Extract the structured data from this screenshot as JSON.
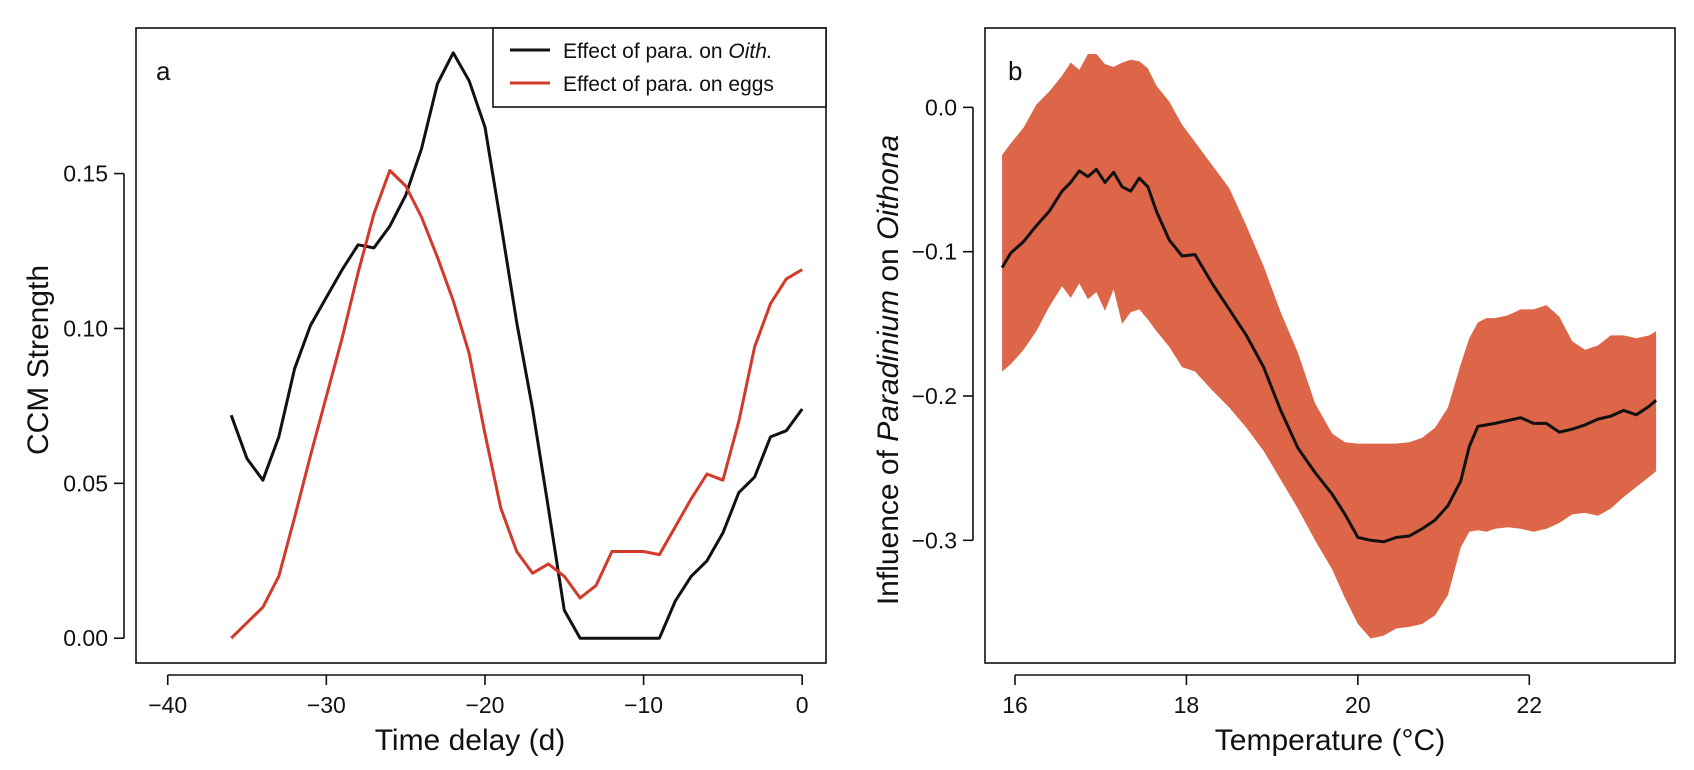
{
  "chart_data": [
    {
      "type": "line",
      "panel_label": "a",
      "title": "",
      "xlabel": "Time delay (d)",
      "ylabel": "CCM Strength",
      "xlim": [
        -42,
        1.5
      ],
      "ylim": [
        -0.008,
        0.197
      ],
      "xticks": [
        -40,
        -30,
        -20,
        -10,
        0
      ],
      "xtick_labels": [
        "−40",
        "−30",
        "−20",
        "−10",
        "0"
      ],
      "yticks": [
        0,
        0.05,
        0.1,
        0.15
      ],
      "ytick_labels": [
        "0.00",
        "0.05",
        "0.10",
        "0.15"
      ],
      "grid": false,
      "legend_position": "top-right",
      "legend": [
        {
          "prefix": "Effect of para. on ",
          "italic": "Oith.",
          "color": "#111111"
        },
        {
          "prefix": "Effect of para. on eggs",
          "italic": "",
          "color": "#d23a2a"
        }
      ],
      "series": [
        {
          "name": "Effect of para. on Oith.",
          "color": "#111111",
          "x": [
            -36,
            -35,
            -34,
            -33,
            -32,
            -31,
            -30,
            -29,
            -28,
            -27,
            -26,
            -25,
            -24,
            -23,
            -22,
            -21,
            -20,
            -19,
            -18,
            -17,
            -16,
            -15,
            -14,
            -13,
            -12,
            -11,
            -10,
            -9,
            -8,
            -7,
            -6,
            -5,
            -4,
            -3,
            -2,
            -1,
            0
          ],
          "y": [
            0.072,
            0.058,
            0.051,
            0.065,
            0.087,
            0.101,
            0.11,
            0.119,
            0.127,
            0.126,
            0.133,
            0.143,
            0.158,
            0.179,
            0.189,
            0.18,
            0.165,
            0.134,
            0.102,
            0.074,
            0.042,
            0.009,
            0.0,
            0.0,
            0.0,
            0.0,
            0.0,
            0.0,
            0.012,
            0.02,
            0.025,
            0.034,
            0.047,
            0.052,
            0.065,
            0.067,
            0.074
          ]
        },
        {
          "name": "Effect of para. on eggs",
          "color": "#d23a2a",
          "x": [
            -36,
            -35,
            -34,
            -33,
            -32,
            -31,
            -30,
            -29,
            -28,
            -27,
            -26,
            -25,
            -24,
            -23,
            -22,
            -21,
            -20,
            -19,
            -18,
            -17,
            -16,
            -15,
            -14,
            -13,
            -12,
            -11,
            -10,
            -9,
            -8,
            -7,
            -6,
            -5,
            -4,
            -3,
            -2,
            -1,
            0
          ],
          "y": [
            0.0,
            0.005,
            0.01,
            0.02,
            0.039,
            0.059,
            0.078,
            0.097,
            0.118,
            0.137,
            0.151,
            0.146,
            0.136,
            0.123,
            0.109,
            0.092,
            0.066,
            0.042,
            0.028,
            0.021,
            0.024,
            0.02,
            0.013,
            0.017,
            0.028,
            0.028,
            0.028,
            0.027,
            0.036,
            0.045,
            0.053,
            0.051,
            0.07,
            0.094,
            0.108,
            0.116,
            0.119
          ]
        }
      ]
    },
    {
      "type": "area",
      "panel_label": "b",
      "title": "",
      "xlabel": "Temperature (°C)",
      "ylabel_parts": [
        "Influence of ",
        "Paradinium",
        " on ",
        "Oithona"
      ],
      "xlim": [
        15.65,
        23.7
      ],
      "ylim": [
        -0.385,
        0.055
      ],
      "xticks": [
        16,
        18,
        20,
        22
      ],
      "xtick_labels": [
        "16",
        "18",
        "20",
        "22"
      ],
      "yticks": [
        0.0,
        -0.1,
        -0.2,
        -0.3
      ],
      "ytick_labels": [
        "0.0",
        "−0.1",
        "−0.2",
        "−0.3"
      ],
      "grid": false,
      "band_color": "#dd6548",
      "line_color": "#111111",
      "series": [
        {
          "name": "",
          "x": [
            15.85,
            15.95,
            16.1,
            16.25,
            16.4,
            16.55,
            16.65,
            16.75,
            16.85,
            16.95,
            17.05,
            17.15,
            17.25,
            17.35,
            17.45,
            17.55,
            17.65,
            17.8,
            17.95,
            18.1,
            18.3,
            18.5,
            18.7,
            18.9,
            19.1,
            19.3,
            19.5,
            19.7,
            19.85,
            20.0,
            20.15,
            20.3,
            20.45,
            20.6,
            20.75,
            20.9,
            21.05,
            21.2,
            21.3,
            21.4,
            21.5,
            21.6,
            21.75,
            21.9,
            22.05,
            22.2,
            22.35,
            22.5,
            22.65,
            22.8,
            22.95,
            23.1,
            23.25,
            23.4,
            23.48
          ],
          "y": [
            -0.111,
            -0.101,
            -0.093,
            -0.082,
            -0.072,
            -0.058,
            -0.052,
            -0.044,
            -0.048,
            -0.043,
            -0.052,
            -0.045,
            -0.055,
            -0.058,
            -0.049,
            -0.055,
            -0.072,
            -0.092,
            -0.103,
            -0.102,
            -0.122,
            -0.14,
            -0.158,
            -0.18,
            -0.21,
            -0.236,
            -0.253,
            -0.268,
            -0.282,
            -0.298,
            -0.3,
            -0.301,
            -0.298,
            -0.297,
            -0.292,
            -0.286,
            -0.276,
            -0.259,
            -0.235,
            -0.221,
            -0.22,
            -0.219,
            -0.217,
            -0.215,
            -0.219,
            -0.219,
            -0.225,
            -0.223,
            -0.22,
            -0.216,
            -0.214,
            -0.21,
            -0.213,
            -0.207,
            -0.203
          ],
          "lower": [
            -0.183,
            -0.178,
            -0.168,
            -0.155,
            -0.138,
            -0.124,
            -0.132,
            -0.122,
            -0.133,
            -0.128,
            -0.141,
            -0.126,
            -0.15,
            -0.142,
            -0.14,
            -0.147,
            -0.155,
            -0.166,
            -0.18,
            -0.183,
            -0.196,
            -0.208,
            -0.222,
            -0.238,
            -0.258,
            -0.278,
            -0.3,
            -0.32,
            -0.34,
            -0.358,
            -0.368,
            -0.366,
            -0.361,
            -0.36,
            -0.358,
            -0.352,
            -0.338,
            -0.305,
            -0.294,
            -0.293,
            -0.294,
            -0.292,
            -0.291,
            -0.292,
            -0.294,
            -0.292,
            -0.288,
            -0.282,
            -0.281,
            -0.283,
            -0.278,
            -0.27,
            -0.263,
            -0.256,
            -0.252
          ],
          "upper": [
            -0.033,
            -0.025,
            -0.014,
            0.002,
            0.011,
            0.022,
            0.031,
            0.026,
            0.037,
            0.037,
            0.03,
            0.028,
            0.031,
            0.033,
            0.032,
            0.027,
            0.015,
            0.004,
            -0.012,
            -0.024,
            -0.04,
            -0.056,
            -0.082,
            -0.11,
            -0.142,
            -0.17,
            -0.205,
            -0.226,
            -0.232,
            -0.233,
            -0.233,
            -0.233,
            -0.233,
            -0.232,
            -0.229,
            -0.222,
            -0.208,
            -0.178,
            -0.16,
            -0.149,
            -0.146,
            -0.146,
            -0.144,
            -0.14,
            -0.14,
            -0.137,
            -0.145,
            -0.162,
            -0.168,
            -0.165,
            -0.158,
            -0.158,
            -0.16,
            -0.158,
            -0.155
          ]
        }
      ]
    }
  ]
}
